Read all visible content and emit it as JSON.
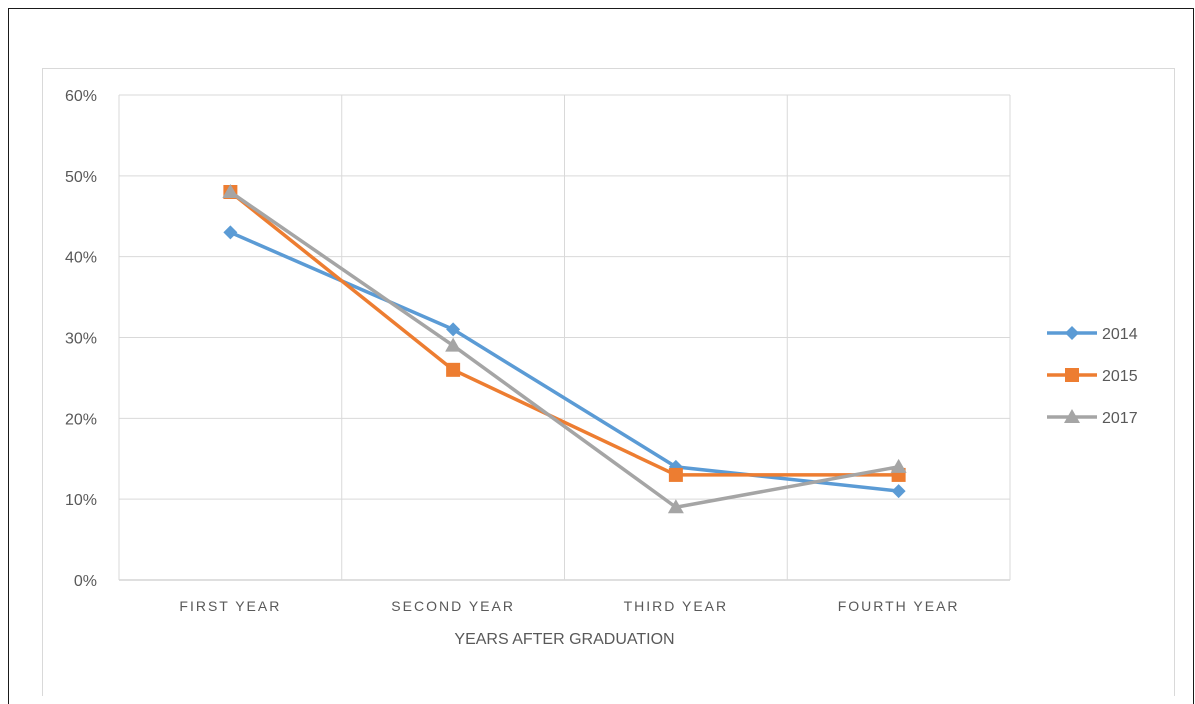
{
  "chart_data": {
    "type": "line",
    "categories": [
      "FIRST YEAR",
      "SECOND YEAR",
      "THIRD YEAR",
      "FOURTH YEAR"
    ],
    "xlabel": "YEARS AFTER GRADUATION",
    "ylabel": "",
    "ylim": [
      0,
      60
    ],
    "y_tick_labels": [
      "0%",
      "10%",
      "20%",
      "30%",
      "40%",
      "50%",
      "60%"
    ],
    "y_unit": "%",
    "grid": true,
    "legend_position": "right",
    "series": [
      {
        "name": "2014",
        "values": [
          43,
          31,
          14,
          11
        ],
        "color": "#5b9bd5",
        "marker": "diamond"
      },
      {
        "name": "2015",
        "values": [
          48,
          26,
          13,
          13
        ],
        "color": "#ed7d31",
        "marker": "square"
      },
      {
        "name": "2017",
        "values": [
          48,
          29,
          9,
          14
        ],
        "color": "#a5a5a5",
        "marker": "triangle"
      }
    ]
  }
}
